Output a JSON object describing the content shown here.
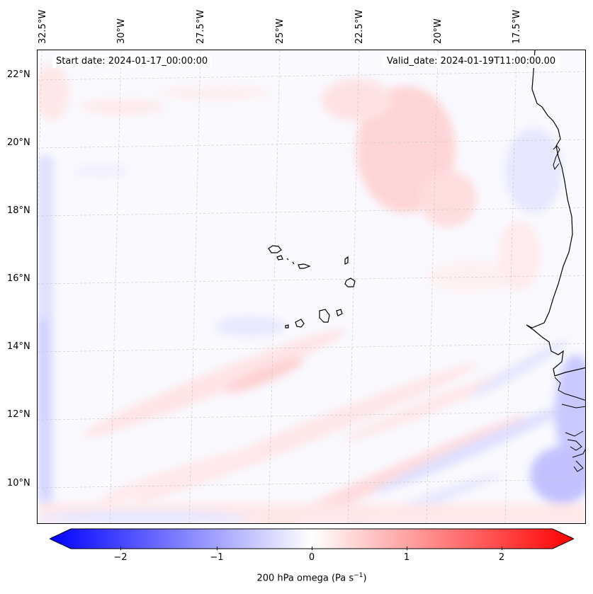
{
  "header": {
    "start_date": "Start date: 2024-01-17_00:00:00",
    "valid_date": "Valid_date: 2024-01-19T11:00:00.00"
  },
  "map": {
    "lon_labels": [
      "32.5°W",
      "30°W",
      "27.5°W",
      "25°W",
      "22.5°W",
      "20°W",
      "17.5°W"
    ],
    "lat_labels": [
      "22°N",
      "20°N",
      "18°N",
      "16°N",
      "14°N",
      "12°N",
      "10°N"
    ]
  },
  "colorbar": {
    "ticks": [
      "−2",
      "−1",
      "0",
      "1",
      "2"
    ],
    "label": "200 hPa omega (Pa s",
    "label_sup": "−1",
    "label_end": ")",
    "min_color": "#0000ff",
    "mid_color": "#ffffff",
    "max_color": "#ff0000"
  }
}
